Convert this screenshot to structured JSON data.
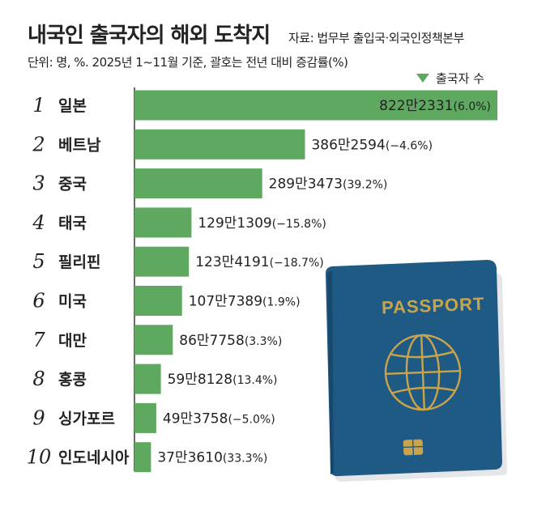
{
  "header": {
    "title": "내국인 출국자의 해외 도착지",
    "source": "자료: 법무부 출입국·외국인정책본부",
    "unit_note": "단위: 명, %. 2025년 1~11월 기준, 괄호는 전년 대비 증감률(%)"
  },
  "legend": {
    "label": "출국자 수",
    "color": "#5ea95f"
  },
  "passport": {
    "label": "PASSPORT",
    "cover_color": "#1f5a85",
    "gold_color": "#c9a44a"
  },
  "chart_data": {
    "type": "bar",
    "orientation": "horizontal",
    "title": "내국인 출국자의 해외 도착지",
    "xlabel": "",
    "ylabel": "",
    "bar_color": "#5ea95f",
    "ranks": [
      "1",
      "2",
      "3",
      "4",
      "5",
      "6",
      "7",
      "8",
      "9",
      "10"
    ],
    "categories": [
      "일본",
      "베트남",
      "중국",
      "태국",
      "필리핀",
      "미국",
      "대만",
      "홍콩",
      "싱가포르",
      "인도네시아"
    ],
    "values": [
      8222331,
      3862594,
      2893473,
      1291309,
      1234191,
      1077389,
      867758,
      598128,
      493758,
      373610
    ],
    "value_labels": [
      "822만2331",
      "386만2594",
      "289만3473",
      "129만1309",
      "123만4191",
      "107만7389",
      "86만7758",
      "59만8128",
      "49만3758",
      "37만3610"
    ],
    "change_labels": [
      "(6.0%)",
      "(−4.6%)",
      "(39.2%)",
      "(−15.8%)",
      "(−18.7%)",
      "(1.9%)",
      "(3.3%)",
      "(13.4%)",
      "(−5.0%)",
      "(33.3%)"
    ],
    "yoy_change_pct": [
      6.0,
      -4.6,
      39.2,
      -15.8,
      -18.7,
      1.9,
      3.3,
      13.4,
      -5.0,
      33.3
    ]
  }
}
